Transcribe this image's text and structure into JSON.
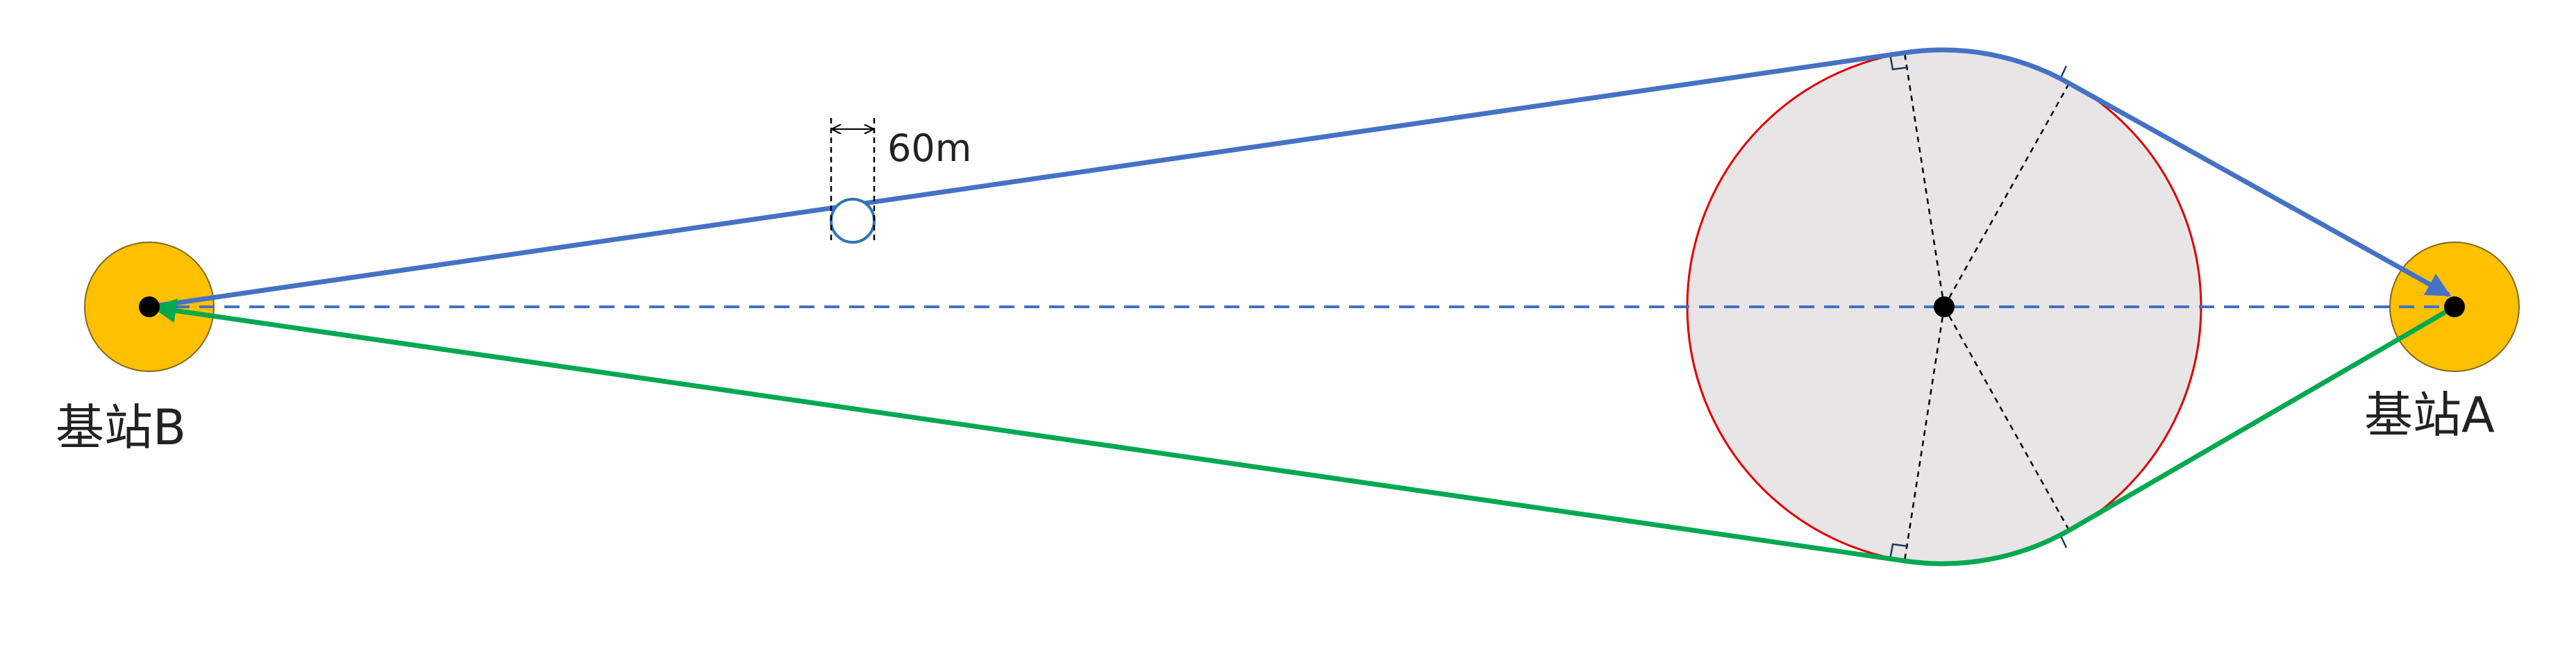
{
  "labels": {
    "station_a": "基站A",
    "station_b": "基站B",
    "width": "60m"
  },
  "colors": {
    "station_fill": "#FFC000",
    "station_stroke": "#7F6A1E",
    "obstacle_fill": "#E7E5E6",
    "obstacle_stroke": "#E00000",
    "blue_path": "#4472C4",
    "green_path": "#00A84F",
    "baseline": "#4472C4",
    "small_circle": "#2E75B6",
    "guide_lines": "#000000"
  }
}
